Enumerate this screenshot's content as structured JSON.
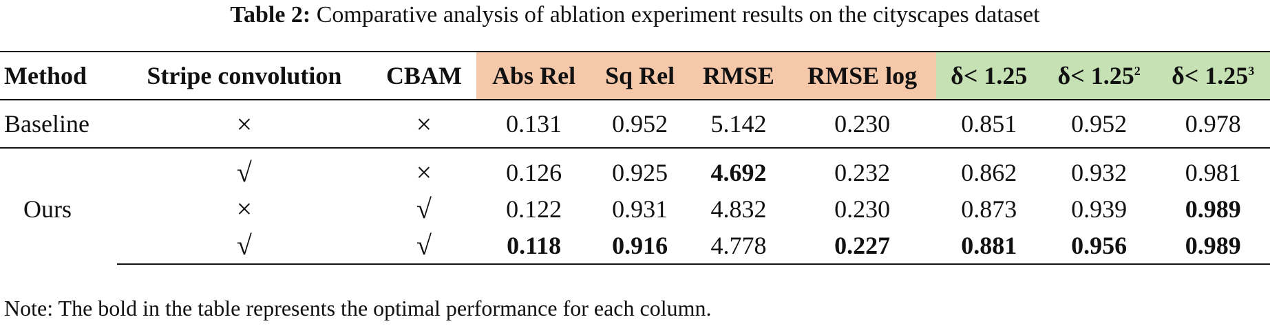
{
  "caption": {
    "label": "Table 2:",
    "text": "Comparative analysis of ablation experiment results on the cityscapes dataset"
  },
  "header": {
    "method": "Method",
    "stripe": "Stripe convolution",
    "cbam": "CBAM",
    "abs_rel": "Abs Rel",
    "sq_rel": "Sq Rel",
    "rmse": "RMSE",
    "rmse_log": "RMSE log",
    "d1": "δ< 1.25",
    "d2_base": "δ< 1.25",
    "d2_sup": "2",
    "d3_base": "δ< 1.25",
    "d3_sup": "3"
  },
  "colors": {
    "error_metrics_bg": "#f6c8aa",
    "accuracy_metrics_bg": "#c6e2b4"
  },
  "rows": [
    {
      "method": "Baseline",
      "stripe": "×",
      "cbam": "×",
      "abs_rel": "0.131",
      "sq_rel": "0.952",
      "rmse": "5.142",
      "rmse_log": "0.230",
      "d1": "0.851",
      "d2": "0.952",
      "d3": "0.978"
    },
    {
      "method": "Ours",
      "stripe": "√",
      "cbam": "×",
      "abs_rel": "0.126",
      "sq_rel": "0.925",
      "rmse": "4.692",
      "rmse_log": "0.232",
      "d1": "0.862",
      "d2": "0.932",
      "d3": "0.981"
    },
    {
      "method": "",
      "stripe": "×",
      "cbam": "√",
      "abs_rel": "0.122",
      "sq_rel": "0.931",
      "rmse": "4.832",
      "rmse_log": "0.230",
      "d1": "0.873",
      "d2": "0.939",
      "d3": "0.989"
    },
    {
      "method": "",
      "stripe": "√",
      "cbam": "√",
      "abs_rel": "0.118",
      "sq_rel": "0.916",
      "rmse": "4.778",
      "rmse_log": "0.227",
      "d1": "0.881",
      "d2": "0.956",
      "d3": "0.989"
    }
  ],
  "note": "Note: The bold in the table represents the optimal performance for each column."
}
